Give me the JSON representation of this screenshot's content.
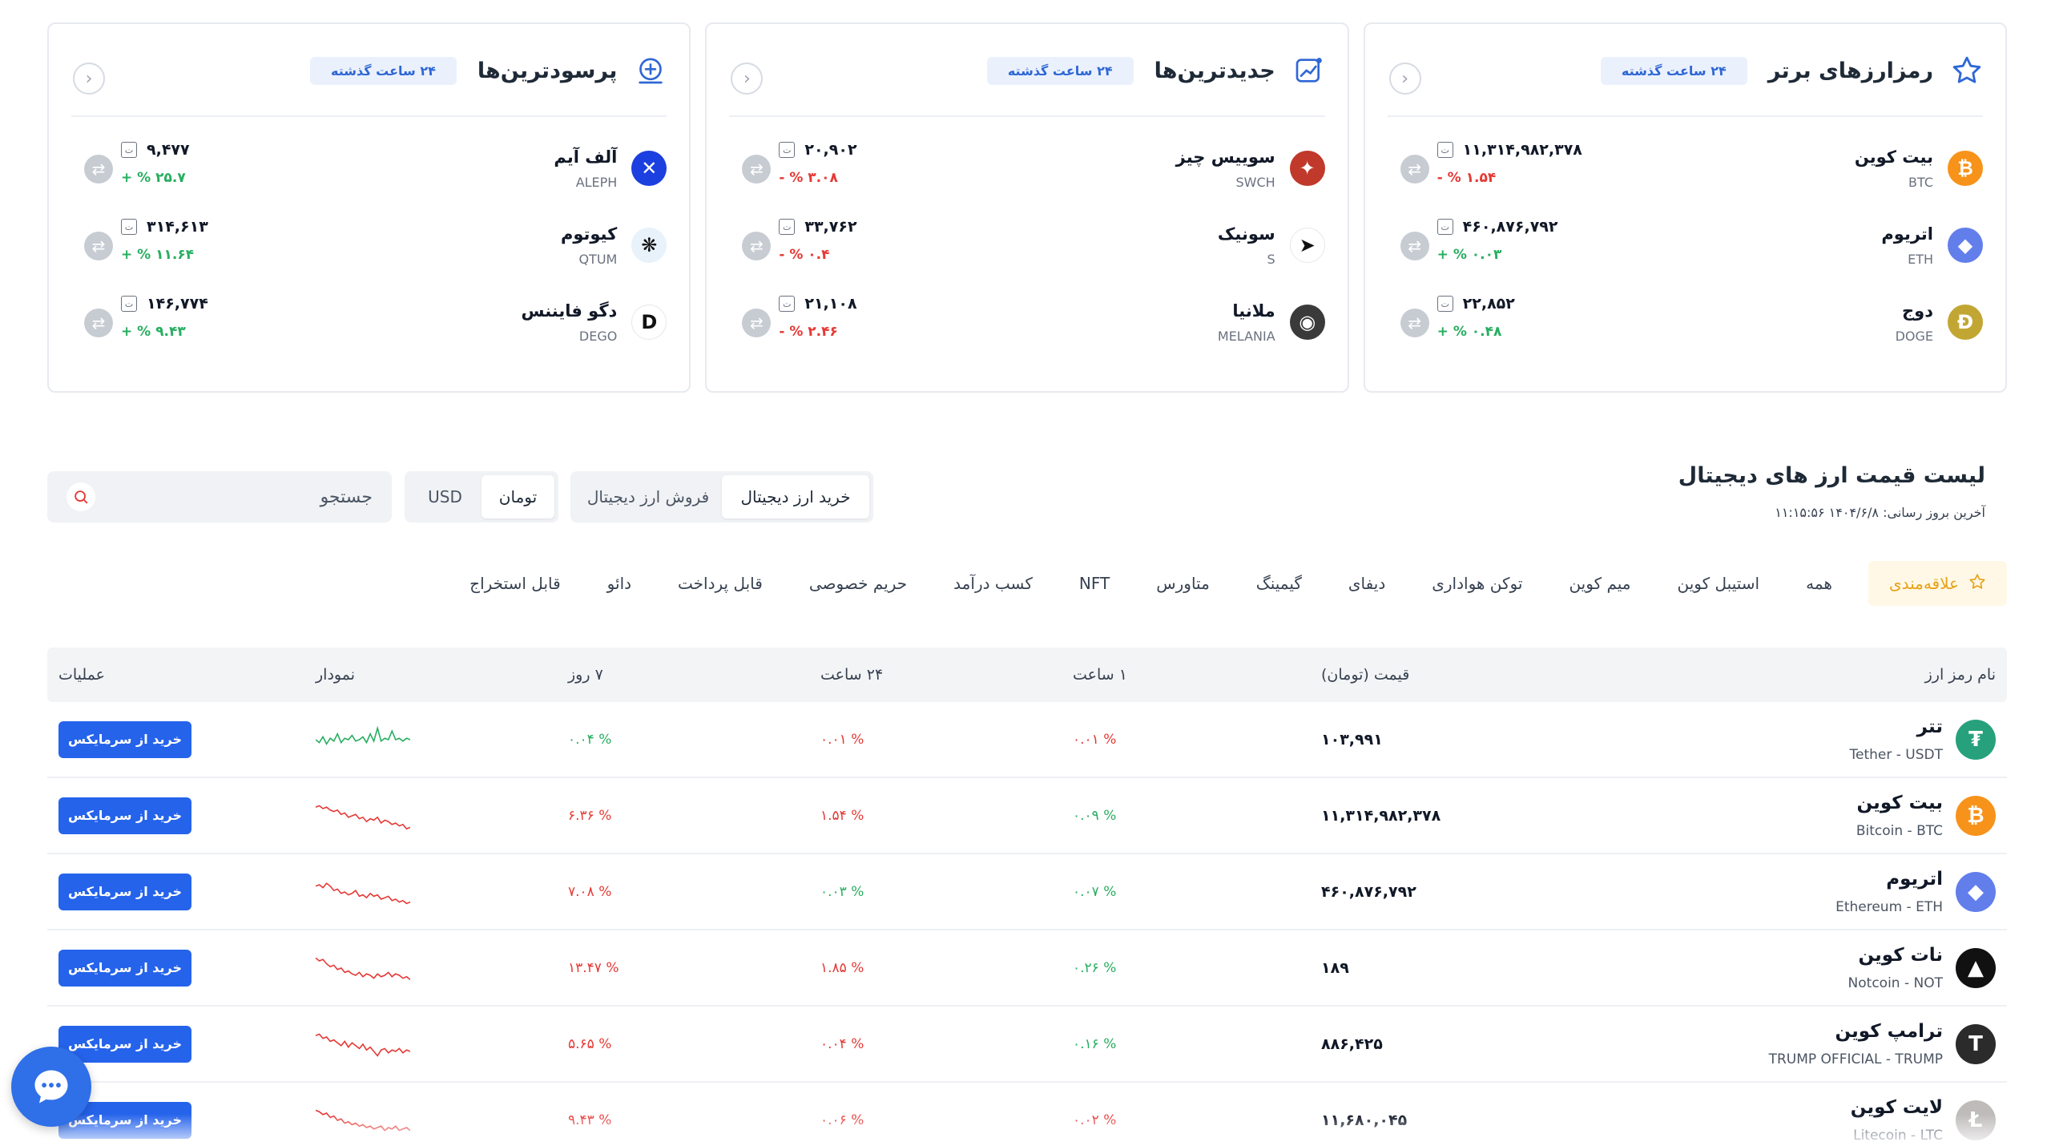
{
  "cards": [
    {
      "title": "رمزارزهای برتر",
      "badge": "۲۴ ساعت گذشته",
      "icon": "star-icon",
      "coins": [
        {
          "name": "بیت کوین",
          "symbol": "BTC",
          "price": "۱۱,۳۱۴,۹۸۲,۳۷۸",
          "change": "۱.۵۴ % -",
          "dir": "neg",
          "color": "#f7931a",
          "glyph": "₿"
        },
        {
          "name": "اتریوم",
          "symbol": "ETH",
          "price": "۴۶۰,۸۷۶,۷۹۲",
          "change": "۰.۰۳ % +",
          "dir": "pos",
          "color": "#627eea",
          "glyph": "◆"
        },
        {
          "name": "دوج",
          "symbol": "DOGE",
          "price": "۲۲,۸۵۲",
          "change": "۰.۴۸ % +",
          "dir": "pos",
          "color": "#c2a633",
          "glyph": "Ð"
        }
      ]
    },
    {
      "title": "جدیدترین‌ها",
      "badge": "۲۴ ساعت گذشته",
      "icon": "chart-line-icon",
      "coins": [
        {
          "name": "سوییس چیز",
          "symbol": "SWCH",
          "price": "۲۰,۹۰۲",
          "change": "۳.۰۸ % -",
          "dir": "neg",
          "color": "#c0392b",
          "glyph": "✦"
        },
        {
          "name": "سونیک",
          "symbol": "S",
          "price": "۳۳,۷۶۲",
          "change": "۰.۴ % -",
          "dir": "neg",
          "color": "#ffffff",
          "glyph": "➤"
        },
        {
          "name": "ملانیا",
          "symbol": "MELANIA",
          "price": "۲۱,۱۰۸",
          "change": "۲.۴۶ % -",
          "dir": "neg",
          "color": "#3a3a3a",
          "glyph": "◉"
        }
      ]
    },
    {
      "title": "پرسودترین‌ها",
      "badge": "۲۴ ساعت گذشته",
      "icon": "plus-circle-icon",
      "coins": [
        {
          "name": "آلف آیم",
          "symbol": "ALEPH",
          "price": "۹,۴۷۷",
          "change": "۲۵.۷ % +",
          "dir": "pos",
          "color": "#1c3fe0",
          "glyph": "✕"
        },
        {
          "name": "کیوتوم",
          "symbol": "QTUM",
          "price": "۳۱۴,۶۱۳",
          "change": "۱۱.۶۴ % +",
          "dir": "pos",
          "color": "#e8f2fb",
          "glyph": "❋"
        },
        {
          "name": "دگو فایننس",
          "symbol": "DEGO",
          "price": "۱۴۶,۷۷۴",
          "change": "۹.۴۳ % +",
          "dir": "pos",
          "color": "#ffffff",
          "glyph": "D"
        }
      ]
    }
  ],
  "list": {
    "title": "لیست قیمت ارز های دیجیتال",
    "update_label": "آخرین بروز رسانی: ۱۴۰۴/۶/۸ ۱۱:۱۵:۵۶",
    "buy_tab": "خرید ارز دیجیتال",
    "sell_tab": "فروش ارز دیجیتال",
    "cur_toman": "تومان",
    "cur_usd": "USD",
    "search_placeholder": "جستجو"
  },
  "tabs": [
    "علاقه‌مندی",
    "همه",
    "استیبل کوین",
    "میم کوین",
    "توکن هواداری",
    "دیفای",
    "گیمینگ",
    "متاورس",
    "NFT",
    "کسب درآمد",
    "حریم خصوصی",
    "قابل پرداخت",
    "دائو",
    "قابل استخراج"
  ],
  "table": {
    "headers": {
      "name": "نام رمز ارز",
      "price": "قیمت (تومان)",
      "h1": "۱ ساعت",
      "h24": "۲۴ ساعت",
      "d7": "۷ روز",
      "chart": "نمودار",
      "ops": "عملیات"
    },
    "buy_label": "خرید از سرمایکس",
    "rows": [
      {
        "name": "تتر",
        "sub": "Tether - USDT",
        "price": "۱۰۳,۹۹۱",
        "h1": "۰.۰۱ %",
        "h1_dir": "neg",
        "h24": "۰.۰۱ %",
        "h24_dir": "neg",
        "d7": "۰.۰۴ %",
        "d7_dir": "pos",
        "color": "#26a17b",
        "glyph": "₮",
        "spark": [
          0.5,
          0.6,
          0.4,
          0.65,
          0.45,
          0.55,
          0.3,
          0.6,
          0.45,
          0.5,
          0.35,
          0.55,
          0.5,
          0.4,
          0.6,
          0.3,
          0.55,
          0.1,
          0.55,
          0.45,
          0.5,
          0.2,
          0.5,
          0.45,
          0.55,
          0.45,
          0.5
        ]
      },
      {
        "name": "بیت کوین",
        "sub": "Bitcoin - BTC",
        "price": "۱۱,۳۱۴,۹۸۲,۳۷۸",
        "h1": "۰.۰۹ %",
        "h1_dir": "pos",
        "h24": "۱.۵۴ %",
        "h24_dir": "neg",
        "d7": "۶.۳۶ %",
        "d7_dir": "neg",
        "color": "#f7931a",
        "glyph": "₿",
        "spark": [
          0.2,
          0.15,
          0.25,
          0.2,
          0.3,
          0.35,
          0.3,
          0.45,
          0.4,
          0.55,
          0.5,
          0.45,
          0.6,
          0.55,
          0.7,
          0.6,
          0.65,
          0.55,
          0.75,
          0.65,
          0.7,
          0.8,
          0.75,
          0.85,
          0.8,
          0.95,
          0.9
        ]
      },
      {
        "name": "اتریوم",
        "sub": "Ethereum - ETH",
        "price": "۴۶۰,۸۷۶,۷۹۲",
        "h1": "۰.۰۷ %",
        "h1_dir": "pos",
        "h24": "۰.۰۳ %",
        "h24_dir": "pos",
        "d7": "۷.۰۸ %",
        "d7_dir": "neg",
        "color": "#627eea",
        "glyph": "◆",
        "spark": [
          0.3,
          0.25,
          0.35,
          0.2,
          0.3,
          0.45,
          0.4,
          0.55,
          0.5,
          0.6,
          0.55,
          0.45,
          0.65,
          0.6,
          0.7,
          0.55,
          0.65,
          0.6,
          0.75,
          0.7,
          0.65,
          0.8,
          0.75,
          0.85,
          0.8,
          0.9,
          0.85
        ]
      },
      {
        "name": "نات کوین",
        "sub": "Notcoin - NOT",
        "price": "۱۸۹",
        "h1": "۰.۲۶ %",
        "h1_dir": "pos",
        "h24": "۱.۸۵ %",
        "h24_dir": "neg",
        "d7": "۱۳.۴۷ %",
        "d7_dir": "neg",
        "color": "#111111",
        "glyph": "▲",
        "spark": [
          0.15,
          0.25,
          0.2,
          0.35,
          0.45,
          0.4,
          0.55,
          0.5,
          0.65,
          0.6,
          0.7,
          0.75,
          0.65,
          0.8,
          0.7,
          0.75,
          0.85,
          0.7,
          0.8,
          0.75,
          0.65,
          0.8,
          0.7,
          0.75,
          0.85,
          0.8,
          0.9
        ]
      },
      {
        "name": "ترامپ کوین",
        "sub": "TRUMP OFFICIAL - TRUMP",
        "price": "۸۸۶,۴۲۵",
        "h1": "۰.۱۶ %",
        "h1_dir": "pos",
        "h24": "۰.۰۴ %",
        "h24_dir": "neg",
        "d7": "۵.۶۵ %",
        "d7_dir": "neg",
        "color": "#2b2b2b",
        "glyph": "T",
        "spark": [
          0.2,
          0.15,
          0.3,
          0.25,
          0.4,
          0.35,
          0.45,
          0.55,
          0.4,
          0.6,
          0.45,
          0.55,
          0.65,
          0.5,
          0.7,
          0.6,
          0.75,
          0.9,
          0.7,
          0.65,
          0.8,
          0.7,
          0.75,
          0.65,
          0.8,
          0.7,
          0.75
        ]
      },
      {
        "name": "لایت کوین",
        "sub": "Litecoin - LTC",
        "price": "۱۱,۶۸۰,۰۴۵",
        "h1": "۰.۰۲ %",
        "h1_dir": "neg",
        "h24": "۰.۰۶ %",
        "h24_dir": "neg",
        "d7": "۹.۴۳ %",
        "d7_dir": "neg",
        "color": "#bfbbbb",
        "glyph": "Ł",
        "spark": [
          0.15,
          0.2,
          0.3,
          0.25,
          0.4,
          0.35,
          0.5,
          0.45,
          0.6,
          0.55,
          0.65,
          0.6,
          0.7,
          0.65,
          0.75,
          0.7,
          0.8,
          0.75,
          0.7,
          0.85,
          0.75,
          0.8,
          0.7,
          0.85,
          0.8,
          0.75,
          0.85
        ]
      }
    ]
  },
  "colors": {
    "accent": "#2563eb",
    "positive": "#27ae60",
    "negative": "#e53935"
  }
}
